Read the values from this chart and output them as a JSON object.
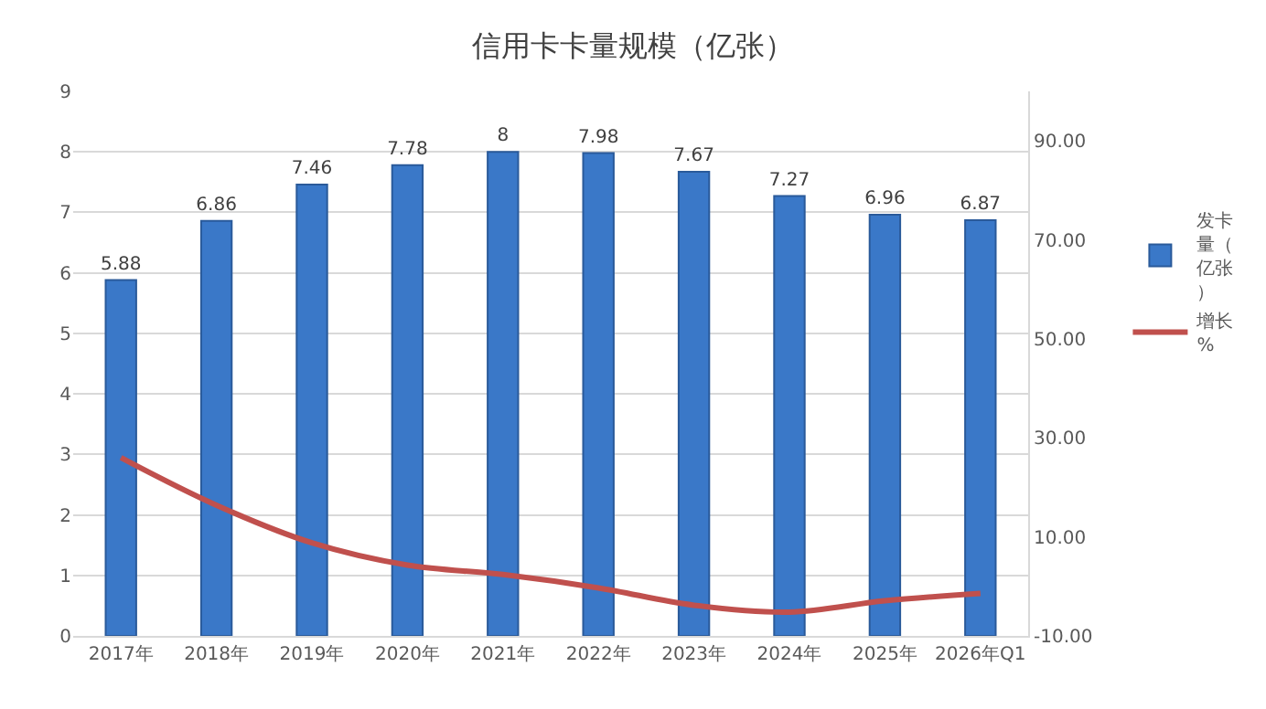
{
  "chart_data": {
    "type": "bar",
    "title": "信用卡卡量规模（亿张）",
    "categories": [
      "2017年",
      "2018年",
      "2019年",
      "2020年",
      "2021年",
      "2022年",
      "2023年",
      "2024年",
      "2025年",
      "2026年Q1"
    ],
    "series": [
      {
        "name": "发卡量（亿张）",
        "color": "#3a78c8",
        "values": [
          5.88,
          6.86,
          7.46,
          7.78,
          8,
          7.98,
          7.67,
          7.27,
          6.96,
          6.87
        ],
        "value_labels": [
          "5.88",
          "6.86",
          "7.46",
          "7.78",
          "8",
          "7.98",
          "7.67",
          "7.27",
          "6.96",
          "6.87"
        ]
      },
      {
        "name": "增长%",
        "type": "line",
        "axis": "y2",
        "color": "#c0504d",
        "values": [
          26,
          16.4,
          8.8,
          4.3,
          2.4,
          -0.3,
          -3.8,
          -5.2,
          -2.9,
          -1.4
        ]
      }
    ],
    "ylim": [
      0,
      9
    ],
    "yticks": [
      0,
      1,
      2,
      3,
      4,
      5,
      6,
      7,
      8,
      9
    ],
    "y2lim": [
      -10,
      100
    ],
    "y2ticks": [
      {
        "value": -10,
        "label": "-10.00"
      },
      {
        "value": 10,
        "label": "10.00"
      },
      {
        "value": 30,
        "label": "30.00"
      },
      {
        "value": 50,
        "label": "50.00"
      },
      {
        "value": 70,
        "label": "70.00"
      },
      {
        "value": 90,
        "label": "90.00"
      }
    ],
    "grid": "y",
    "legend": "right",
    "marker": "none",
    "line_style": "solid"
  }
}
